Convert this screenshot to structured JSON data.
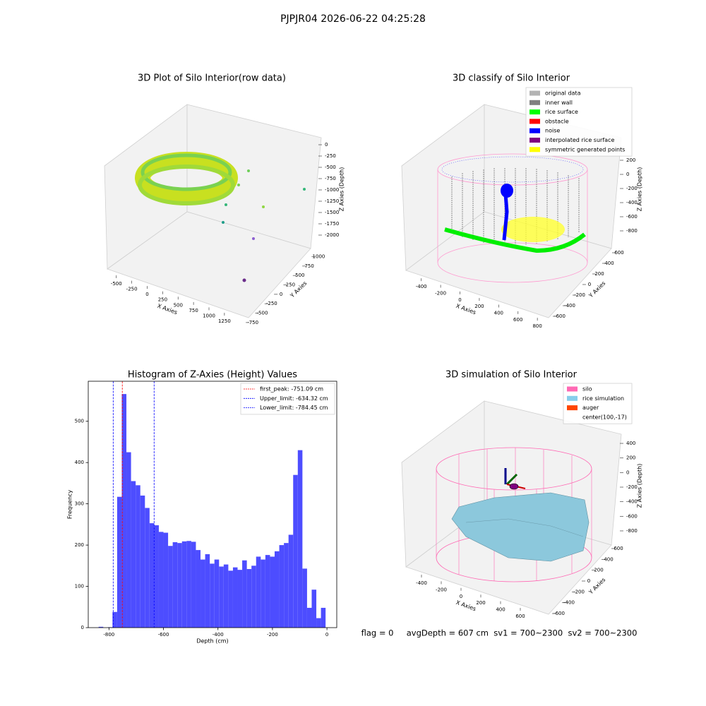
{
  "title": "PJPJR04 2026-06-22 04:25:28",
  "footer": "flag = 0     avgDepth = 607 cm  sv1 = 700~2300  sv2 = 700~2300",
  "chart_data": [
    {
      "type": "scatter3d",
      "title": "3D Plot of Silo Interior(row data)",
      "xlabel": "X Axies",
      "ylabel": "Y Axies",
      "zlabel": "Z Axies (Depth)",
      "xlim": [
        -600,
        1400
      ],
      "xticks": [
        -500,
        -250,
        0,
        250,
        500,
        750,
        1000,
        1250
      ],
      "ylim": [
        -850,
        1100
      ],
      "yticks": [
        -750,
        -500,
        -250,
        0,
        250,
        500,
        750,
        1000
      ],
      "zlim": [
        -2100,
        100
      ],
      "zticks": [
        0,
        -250,
        -500,
        -750,
        -1000,
        -1250,
        -1500,
        -1750,
        -2000
      ]
    },
    {
      "type": "scatter3d",
      "title": "3D classify of Silo Interior",
      "xlabel": "X Axies",
      "ylabel": "Y Axies",
      "zlabel": "Z Axies (Depth)",
      "xlim": [
        -500,
        850
      ],
      "xticks": [
        -400,
        -200,
        0,
        200,
        400,
        600,
        800
      ],
      "ylim": [
        -700,
        700
      ],
      "yticks": [
        -600,
        -400,
        -200,
        0,
        200,
        400,
        600
      ],
      "zlim": [
        -900,
        300
      ],
      "zticks": [
        200,
        0,
        -200,
        -400,
        -600,
        -800
      ],
      "legend": [
        {
          "name": "original data",
          "color": "#b3b3b3"
        },
        {
          "name": "inner wall",
          "color": "#808080"
        },
        {
          "name": "rice surface",
          "color": "#00ff00"
        },
        {
          "name": "obstacle",
          "color": "#ff0000"
        },
        {
          "name": "noise",
          "color": "#0000ff"
        },
        {
          "name": "interpolated rice surface",
          "color": "#800080"
        },
        {
          "name": "symmetric generated points",
          "color": "#ffff00"
        }
      ]
    },
    {
      "type": "histogram",
      "title": "Histogram of Z-Axies (Height) Values",
      "xlabel": "Depth (cm)",
      "ylabel": "Frequency",
      "color": "#4d4dff",
      "bins": [
        -838,
        -821,
        -804,
        -787,
        -770,
        -753,
        -736,
        -719,
        -702,
        -685,
        -668,
        -651,
        -634,
        -617,
        -600,
        -583,
        -566,
        -549,
        -532,
        -515,
        -498,
        -481,
        -464,
        -447,
        -430,
        -413,
        -396,
        -379,
        -362,
        -345,
        -328,
        -311,
        -294,
        -277,
        -260,
        -243,
        -226,
        -209,
        -192,
        -175,
        -158,
        -141,
        -124,
        -107,
        -90,
        -73,
        -56,
        -39,
        -22,
        -5
      ],
      "values": [
        2,
        0,
        1,
        38,
        317,
        566,
        425,
        355,
        345,
        320,
        290,
        253,
        248,
        232,
        230,
        198,
        207,
        205,
        209,
        210,
        208,
        188,
        165,
        178,
        155,
        165,
        148,
        153,
        138,
        146,
        140,
        163,
        142,
        150,
        172,
        165,
        176,
        172,
        185,
        200,
        205,
        225,
        370,
        430,
        143,
        48,
        92,
        23,
        48
      ],
      "xlim": [
        -876,
        36
      ],
      "xticks": [
        -800,
        -600,
        -400,
        -200,
        0
      ],
      "ylim": [
        0,
        597
      ],
      "yticks": [
        0,
        100,
        200,
        300,
        400,
        500
      ],
      "lines": [
        {
          "name": "first_peak: -751.09 cm",
          "value": -751.09,
          "color": "#ff0000"
        },
        {
          "name": "Upper_limit: -634.32 cm",
          "value": -634.32,
          "color": "#0000ff"
        },
        {
          "name": "Lower_limit: -784.45 cm",
          "value": -784.45,
          "color": "#0000ff"
        }
      ]
    },
    {
      "type": "surface3d",
      "title": "3D simulation of Silo Interior",
      "xlabel": "X Axies",
      "ylabel": "Y Axies",
      "zlabel": "Z Axies (Depth)",
      "xlim": [
        -500,
        700
      ],
      "xticks": [
        -400,
        -200,
        0,
        200,
        400,
        600
      ],
      "ylim": [
        -700,
        700
      ],
      "yticks": [
        -600,
        -400,
        -200,
        0,
        200,
        400,
        600
      ],
      "zlim": [
        -900,
        500
      ],
      "zticks": [
        400,
        200,
        0,
        -200,
        -400,
        -600,
        -800
      ],
      "legend": [
        {
          "name": "silo",
          "color": "#ff69b4"
        },
        {
          "name": "rice simulation",
          "color": "#87ceeb"
        },
        {
          "name": "auger",
          "color": "#ff4500"
        },
        {
          "name": "center(100,-17)"
        }
      ]
    }
  ]
}
